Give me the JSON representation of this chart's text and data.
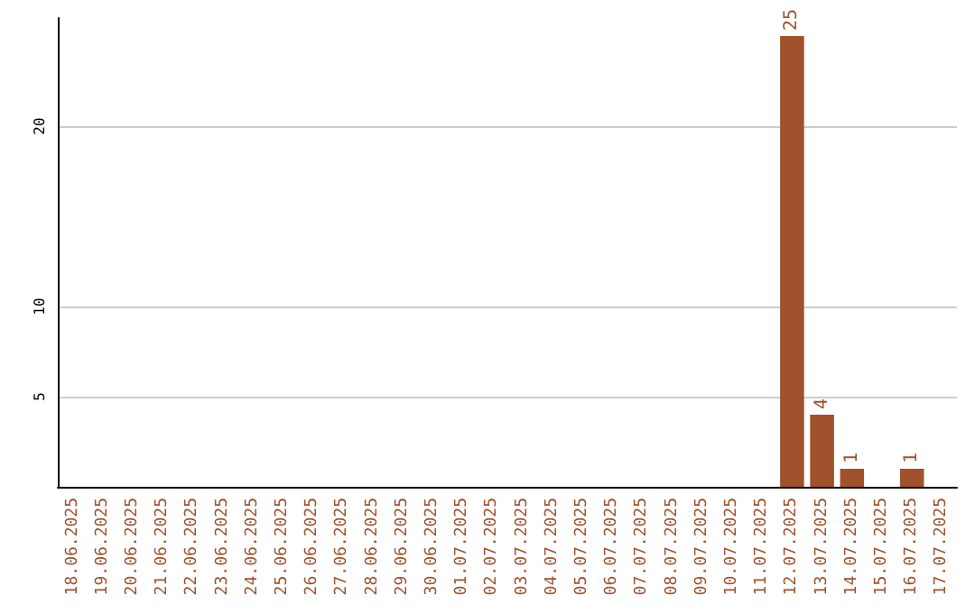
{
  "chart_data": {
    "type": "bar",
    "categories": [
      "18.06.2025",
      "19.06.2025",
      "20.06.2025",
      "21.06.2025",
      "22.06.2025",
      "23.06.2025",
      "24.06.2025",
      "25.06.2025",
      "26.06.2025",
      "27.06.2025",
      "28.06.2025",
      "29.06.2025",
      "30.06.2025",
      "01.07.2025",
      "02.07.2025",
      "03.07.2025",
      "04.07.2025",
      "05.07.2025",
      "06.07.2025",
      "07.07.2025",
      "08.07.2025",
      "09.07.2025",
      "10.07.2025",
      "11.07.2025",
      "12.07.2025",
      "13.07.2025",
      "14.07.2025",
      "15.07.2025",
      "16.07.2025",
      "17.07.2025"
    ],
    "values": [
      0,
      0,
      0,
      0,
      0,
      0,
      0,
      0,
      0,
      0,
      0,
      0,
      0,
      0,
      0,
      0,
      0,
      0,
      0,
      0,
      0,
      0,
      0,
      0,
      25,
      4,
      1,
      0,
      1,
      0
    ],
    "value_labels": [
      null,
      null,
      null,
      null,
      null,
      null,
      null,
      null,
      null,
      null,
      null,
      null,
      null,
      null,
      null,
      null,
      null,
      null,
      null,
      null,
      null,
      null,
      null,
      null,
      "25",
      "4",
      "1",
      null,
      "1",
      null
    ],
    "color": "#a0522d",
    "ylim": [
      0,
      26
    ],
    "yticks": [
      5,
      10,
      20
    ],
    "grid": "y"
  }
}
